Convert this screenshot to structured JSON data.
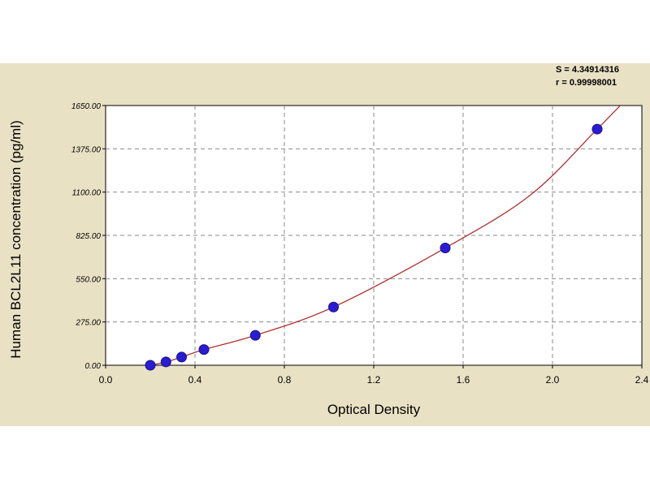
{
  "stats": {
    "s_line": "S = 4.34914316",
    "r_line": "r = 0.99998001"
  },
  "chart_data": {
    "type": "scatter",
    "title": "",
    "xlabel": "Optical Density",
    "ylabel": "Human BCL2L11 concentration (pg/ml)",
    "xlim": [
      0.0,
      2.4
    ],
    "ylim": [
      0.0,
      1650.0
    ],
    "x_ticks": [
      "0.0",
      "0.4",
      "0.8",
      "1.2",
      "1.6",
      "2.0",
      "2.4"
    ],
    "y_ticks": [
      "0.00",
      "275.00",
      "550.00",
      "825.00",
      "1100.00",
      "1375.00",
      "1650.00"
    ],
    "grid": true,
    "points": [
      {
        "x": 0.2,
        "y": 0
      },
      {
        "x": 0.27,
        "y": 21
      },
      {
        "x": 0.34,
        "y": 52
      },
      {
        "x": 0.44,
        "y": 100
      },
      {
        "x": 0.67,
        "y": 190
      },
      {
        "x": 1.02,
        "y": 370
      },
      {
        "x": 1.52,
        "y": 745
      },
      {
        "x": 2.2,
        "y": 1500
      }
    ],
    "fit_curve": [
      {
        "x": 0.2,
        "y": 0
      },
      {
        "x": 0.27,
        "y": 21
      },
      {
        "x": 0.34,
        "y": 52
      },
      {
        "x": 0.44,
        "y": 100
      },
      {
        "x": 0.67,
        "y": 190
      },
      {
        "x": 1.02,
        "y": 370
      },
      {
        "x": 1.52,
        "y": 745
      },
      {
        "x": 1.9,
        "y": 1080
      },
      {
        "x": 2.2,
        "y": 1500
      },
      {
        "x": 2.31,
        "y": 1660
      }
    ],
    "colors": {
      "background": "#e9e1c4",
      "plot_area": "#ffffff",
      "curve": "#b03030",
      "points": "#2a1bd6",
      "grid": "#8a8a8a"
    }
  }
}
